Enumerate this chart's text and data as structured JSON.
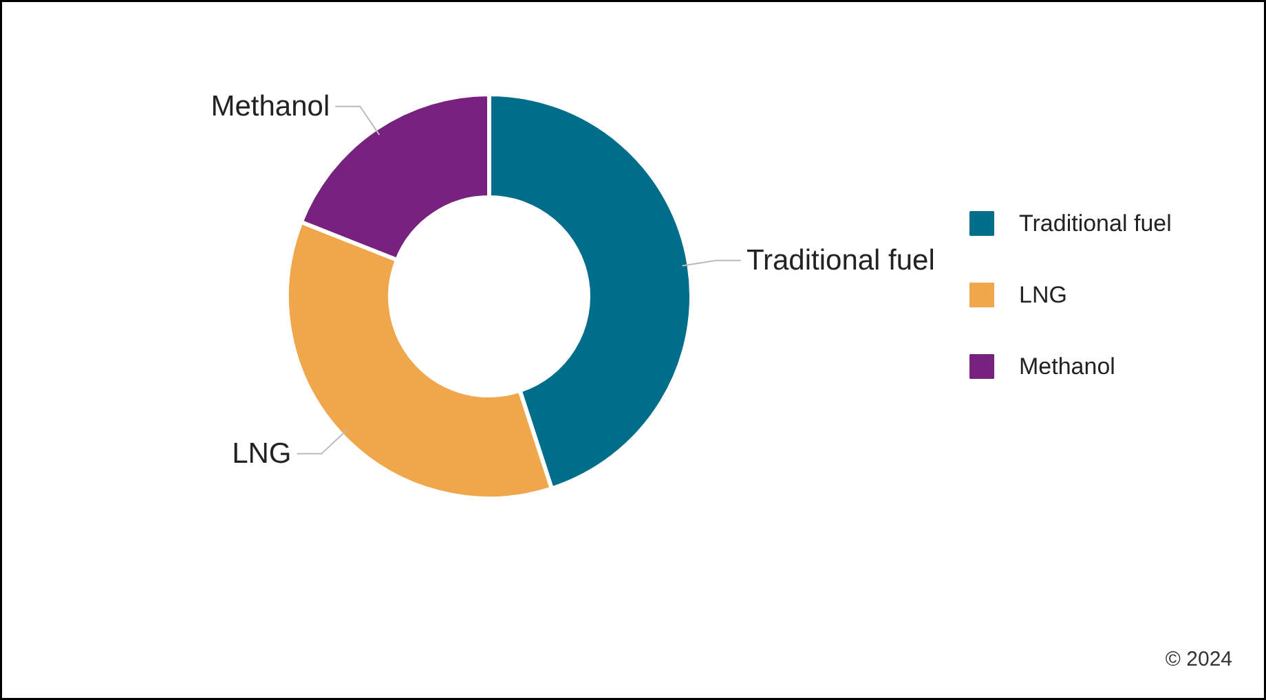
{
  "chart_data": {
    "type": "donut",
    "categories": [
      "Traditional fuel",
      "LNG",
      "Methanol"
    ],
    "values": [
      45,
      36,
      19
    ],
    "colors": [
      "#006e8a",
      "#f0a64a",
      "#77227e"
    ],
    "legend": "right",
    "annotations": [
      "© 2024"
    ]
  }
}
